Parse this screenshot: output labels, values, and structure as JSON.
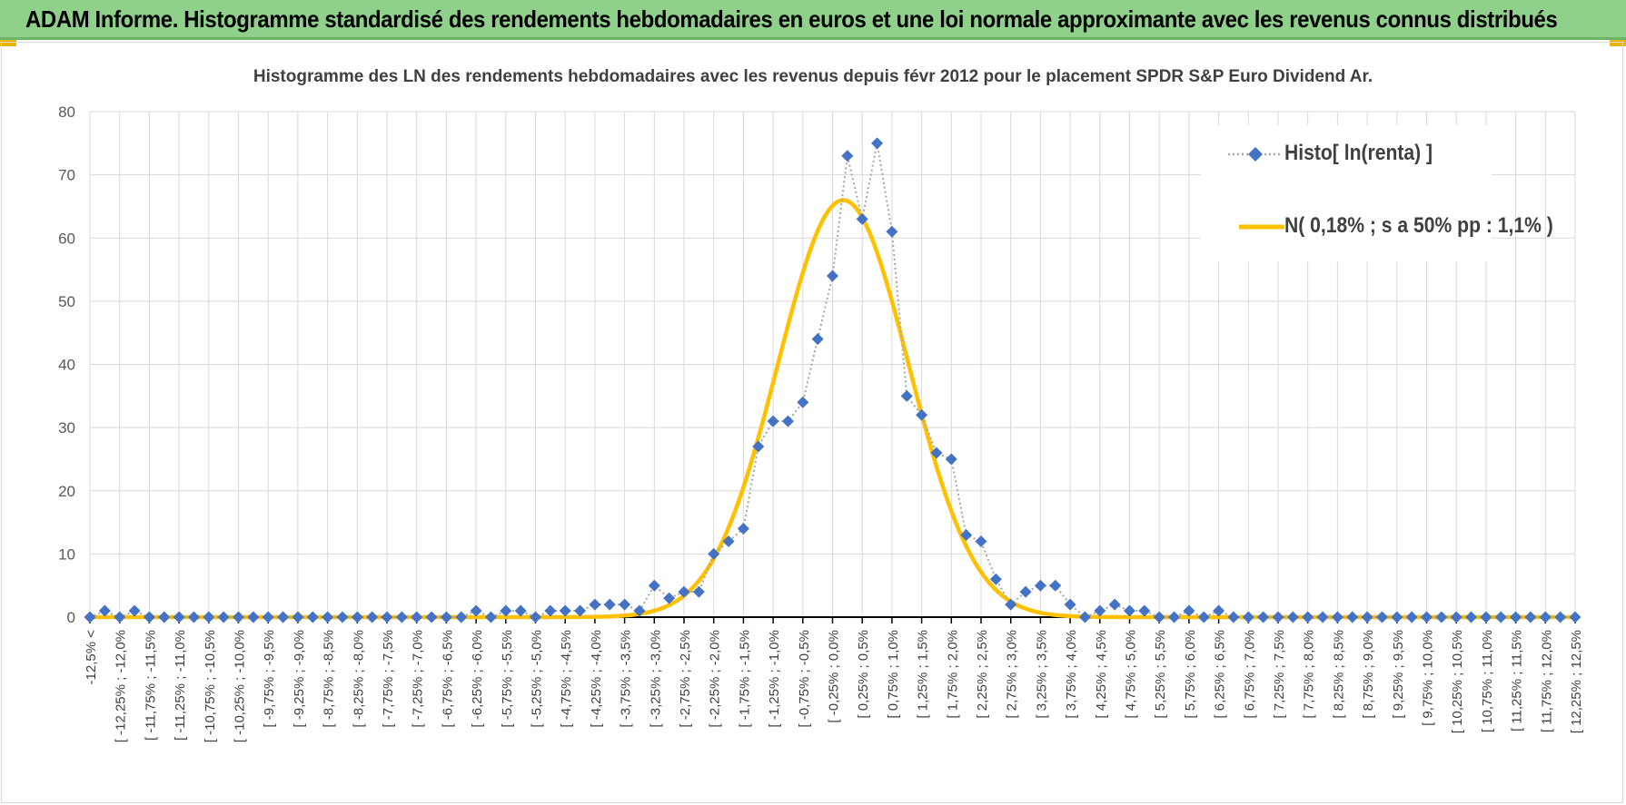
{
  "banner": {
    "title": "ADAM Informe. Histogramme standardisé des rendements hebdomadaires en euros et une loi normale approximante avec les revenus connus distribués"
  },
  "colors": {
    "banner_bg": "#8fd08a",
    "corner": "#e8b400",
    "histo": "#4472c4",
    "normal": "#ffc000",
    "grid": "#d9d9d9",
    "axis": "#000000",
    "text": "#404040"
  },
  "chart_data": {
    "type": "line",
    "title": "Histogramme des LN des rendements hebdomadaires avec les revenus depuis févr 2012 pour le placement SPDR S&P Euro Dividend Ar.",
    "xlabel": "",
    "ylabel": "",
    "ylim": [
      0,
      80
    ],
    "yticks": [
      0,
      10,
      20,
      30,
      40,
      50,
      60,
      70,
      80
    ],
    "grid": true,
    "legend_position": "top-right",
    "categories": [
      "-12,5% <",
      "[ -12,25% ; -12,0% ",
      "[ -11,75% ; -11,5% ",
      "[ -11,25% ; -11,0% ",
      "[ -10,75% ; -10,5% ",
      "[ -10,25% ; -10,0% ",
      "[ -9,75% ; -9,5% ",
      "[ -9,25% ; -9,0% ",
      "[ -8,75% ; -8,5% ",
      "[ -8,25% ; -8,0% ",
      "[ -7,75% ; -7,5% ",
      "[ -7,25% ; -7,0% ",
      "[ -6,75% ; -6,5% ",
      "[ -6,25% ; -6,0% ",
      "[ -5,75% ; -5,5% ",
      "[ -5,25% ; -5,0% ",
      "[ -4,75% ; -4,5% ",
      "[ -4,25% ; -4,0% ",
      "[ -3,75% ; -3,5% ",
      "[ -3,25% ; -3,0% ",
      "[ -2,75% ; -2,5% ",
      "[ -2,25% ; -2,0% ",
      "[ -1,75% ; -1,5% ",
      "[ -1,25% ; -1,0% ",
      "[ -0,75% ; -0,5% ",
      "[ -0,25% ; 0,0% ",
      "[ 0,25% ; 0,5% ",
      "[ 0,75% ; 1,0% ",
      "[ 1,25% ; 1,5% ",
      "[ 1,75% ; 2,0% ",
      "[ 2,25% ; 2,5% ",
      "[ 2,75% ; 3,0% ",
      "[ 3,25% ; 3,5% ",
      "[ 3,75% ; 4,0% ",
      "[ 4,25% ; 4,5% ",
      "[ 4,75% ; 5,0% ",
      "[ 5,25% ; 5,5% ",
      "[ 5,75% ; 6,0% ",
      "[ 6,25% ; 6,5% ",
      "[ 6,75% ; 7,0% ",
      "[ 7,25% ; 7,5% ",
      "[ 7,75% ; 8,0% ",
      "[ 8,25% ; 8,5% ",
      "[ 8,75% ; 9,0% ",
      "[ 9,25% ; 9,5% ",
      "[ 9,75% ; 10,0% ",
      "[ 10,25% ; 10,5% ",
      "[ 10,75% ; 11,0% ",
      "[ 11,25% ; 11,5% ",
      "[ 11,75% ; 12,0% ",
      "[ 12,25% ; 12,5% "
    ],
    "x": [
      -12.5,
      -12.25,
      -12.0,
      -11.75,
      -11.5,
      -11.25,
      -11.0,
      -10.75,
      -10.5,
      -10.25,
      -10.0,
      -9.75,
      -9.5,
      -9.25,
      -9.0,
      -8.75,
      -8.5,
      -8.25,
      -8.0,
      -7.75,
      -7.5,
      -7.25,
      -7.0,
      -6.75,
      -6.5,
      -6.25,
      -6.0,
      -5.75,
      -5.5,
      -5.25,
      -5.0,
      -4.75,
      -4.5,
      -4.25,
      -4.0,
      -3.75,
      -3.5,
      -3.25,
      -3.0,
      -2.75,
      -2.5,
      -2.25,
      -2.0,
      -1.75,
      -1.5,
      -1.25,
      -1.0,
      -0.75,
      -0.5,
      -0.25,
      0.0,
      0.25,
      0.5,
      0.75,
      1.0,
      1.25,
      1.5,
      1.75,
      2.0,
      2.25,
      2.5,
      2.75,
      3.0,
      3.25,
      3.5,
      3.75,
      4.0,
      4.25,
      4.5,
      4.75,
      5.0,
      5.25,
      5.5,
      5.75,
      6.0,
      6.25,
      6.5,
      6.75,
      7.0,
      7.25,
      7.5,
      7.75,
      8.0,
      8.25,
      8.5,
      8.75,
      9.0,
      9.25,
      9.5,
      9.75,
      10.0,
      10.25,
      10.5,
      10.75,
      11.0,
      11.25,
      11.5,
      11.75,
      12.0,
      12.25,
      12.5
    ],
    "series": [
      {
        "name": "Histo[ ln(renta) ]",
        "style": "dotted-line-diamond-markers",
        "values": [
          0,
          1,
          0,
          1,
          0,
          0,
          0,
          0,
          0,
          0,
          0,
          0,
          0,
          0,
          0,
          0,
          0,
          0,
          0,
          0,
          0,
          0,
          0,
          0,
          0,
          0,
          1,
          0,
          1,
          1,
          0,
          1,
          1,
          1,
          2,
          2,
          2,
          1,
          5,
          3,
          4,
          4,
          10,
          12,
          14,
          27,
          31,
          31,
          34,
          44,
          54,
          73,
          63,
          75,
          61,
          35,
          32,
          26,
          25,
          13,
          12,
          6,
          2,
          4,
          5,
          5,
          2,
          0,
          1,
          2,
          1,
          1,
          0,
          0,
          1,
          0,
          1,
          0,
          0,
          0,
          0,
          0,
          0,
          0,
          0,
          0,
          0,
          0,
          0,
          0,
          0,
          0,
          0,
          0,
          0,
          0,
          0,
          0,
          0,
          0,
          0
        ]
      },
      {
        "name": "N( 0,18% ; s a 50% pp : 1,1% )",
        "style": "smooth-line",
        "mean": 0.18,
        "sd": 1.1,
        "peak": 66
      }
    ]
  }
}
